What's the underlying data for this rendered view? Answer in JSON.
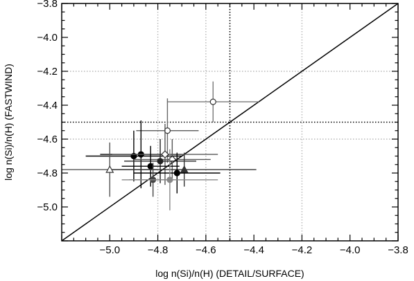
{
  "chart_data": {
    "type": "scatter",
    "title": "",
    "xlabel": "log  n(Si)/n(H)  (DETAIL/SURFACE)",
    "ylabel": "log  n(Si)/n(H)  (FASTWIND)",
    "xlim": [
      -5.2,
      -3.8
    ],
    "ylim": [
      -5.2,
      -3.8
    ],
    "xticks": [
      -5.0,
      -4.8,
      -4.6,
      -4.4,
      -4.2,
      -4.0,
      -3.8
    ],
    "yticks": [
      -5.0,
      -4.8,
      -4.6,
      -4.4,
      -4.2,
      -4.0,
      -3.8
    ],
    "xtick_labels": [
      "−5.0",
      "−4.8",
      "−4.6",
      "−4.4",
      "−4.2",
      "−4.0",
      "−3.8"
    ],
    "ytick_labels": [
      "−5.0",
      "−4.8",
      "−4.6",
      "−4.4",
      "−4.2",
      "−4.0",
      "−3.8"
    ],
    "grid": true,
    "grid_x": [
      -4.8,
      -4.6,
      -4.2
    ],
    "grid_y": [
      -4.6,
      -4.2
    ],
    "reference_lines": {
      "x": -4.5,
      "y": -4.5,
      "diagonal": true
    },
    "points": [
      {
        "x": -4.57,
        "y": -4.38,
        "xerr": 0.19,
        "yerr": 0.12,
        "marker": "open-circle",
        "color": "#777777"
      },
      {
        "x": -4.76,
        "y": -4.55,
        "xerr": 0.13,
        "yerr": 0.19,
        "marker": "open-circle",
        "color": "#666666"
      },
      {
        "x": -4.9,
        "y": -4.7,
        "xerr": 0.2,
        "yerr": 0.15,
        "marker": "filled-circle",
        "color": "#000000"
      },
      {
        "x": -4.87,
        "y": -4.69,
        "xerr": 0.17,
        "yerr": 0.2,
        "marker": "filled-circle",
        "color": "#000000"
      },
      {
        "x": -4.77,
        "y": -4.69,
        "xerr": 0.22,
        "yerr": 0.18,
        "marker": "open-diamond",
        "color": "#555555"
      },
      {
        "x": -4.74,
        "y": -4.72,
        "xerr": 0.16,
        "yerr": 0.12,
        "marker": "open-diamond",
        "color": "#555555"
      },
      {
        "x": -4.79,
        "y": -4.73,
        "xerr": 0.15,
        "yerr": 0.13,
        "marker": "filled-circle",
        "color": "#222222"
      },
      {
        "x": -4.83,
        "y": -4.76,
        "xerr": 0.12,
        "yerr": 0.12,
        "marker": "filled-circle",
        "color": "#000000"
      },
      {
        "x": -5.0,
        "y": -4.78,
        "xerr": 0.2,
        "yerr": 0.16,
        "marker": "open-triangle",
        "color": "#555555"
      },
      {
        "x": -4.69,
        "y": -4.78,
        "xerr": 0.3,
        "yerr": 0.1,
        "marker": "filled-triangle",
        "color": "#333333"
      },
      {
        "x": -4.72,
        "y": -4.8,
        "xerr": 0.18,
        "yerr": 0.12,
        "marker": "filled-circle",
        "color": "#000000"
      },
      {
        "x": -4.82,
        "y": -4.84,
        "xerr": 0.1,
        "yerr": 0.1,
        "marker": "filled-circle",
        "color": "#444444"
      },
      {
        "x": -4.75,
        "y": -4.84,
        "xerr": 0.2,
        "yerr": 0.18,
        "marker": "filled-circle",
        "color": "#888888"
      }
    ]
  }
}
